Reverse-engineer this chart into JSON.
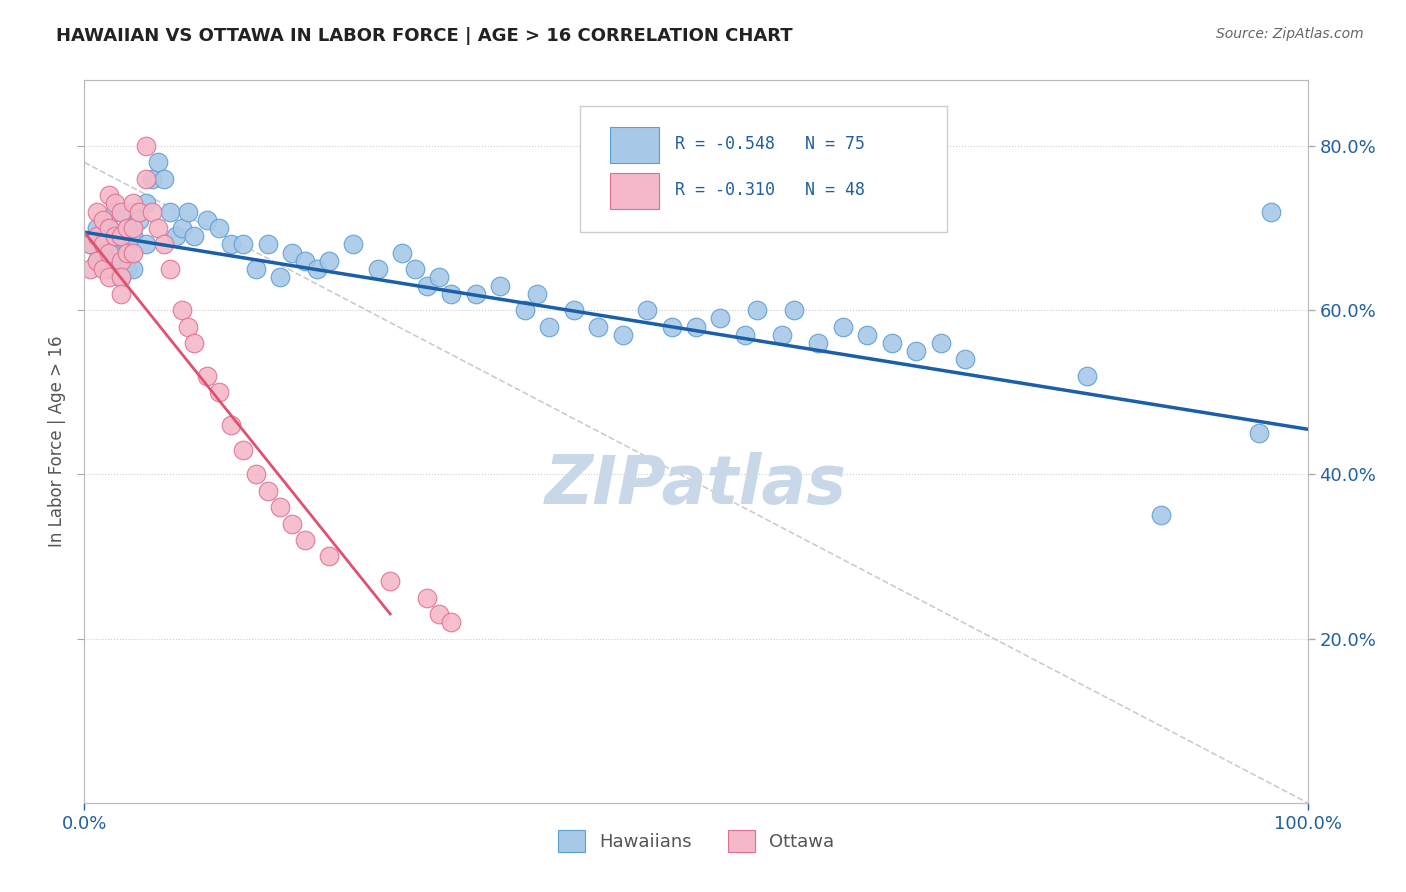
{
  "title": "HAWAIIAN VS OTTAWA IN LABOR FORCE | AGE > 16 CORRELATION CHART",
  "source": "Source: ZipAtlas.com",
  "ylabel": "In Labor Force | Age > 16",
  "hawaii_color": "#a8c8e8",
  "hawaii_edge_color": "#5a9fd4",
  "ottawa_color": "#f4b8c8",
  "ottawa_edge_color": "#e07090",
  "hawaii_line_color": "#1a5fa8",
  "ottawa_line_color": "#e05070",
  "dash_line_color": "#cccccc",
  "watermark": "ZIPatlas",
  "watermark_color": "#c8d8e8",
  "xlim": [
    0.0,
    1.0
  ],
  "ylim": [
    0.0,
    0.88
  ],
  "ytick_labels": [
    "20.0%",
    "40.0%",
    "60.0%",
    "80.0%"
  ],
  "ytick_values": [
    0.2,
    0.4,
    0.6,
    0.8
  ],
  "xtick_labels": [
    "0.0%",
    "100.0%"
  ],
  "xtick_values": [
    0.0,
    1.0
  ],
  "legend_R_hawaii": "R = -0.548",
  "legend_N_hawaii": "N = 75",
  "legend_R_ottawa": "R = -0.310",
  "legend_N_ottawa": "N = 48",
  "hawaii_x": [
    0.005,
    0.01,
    0.01,
    0.015,
    0.015,
    0.02,
    0.02,
    0.02,
    0.025,
    0.025,
    0.03,
    0.03,
    0.03,
    0.035,
    0.035,
    0.035,
    0.04,
    0.04,
    0.04,
    0.045,
    0.05,
    0.05,
    0.055,
    0.06,
    0.065,
    0.07,
    0.075,
    0.08,
    0.085,
    0.09,
    0.1,
    0.11,
    0.12,
    0.13,
    0.14,
    0.15,
    0.16,
    0.17,
    0.18,
    0.19,
    0.2,
    0.22,
    0.24,
    0.26,
    0.27,
    0.28,
    0.29,
    0.3,
    0.32,
    0.34,
    0.36,
    0.37,
    0.38,
    0.4,
    0.42,
    0.44,
    0.46,
    0.48,
    0.5,
    0.52,
    0.54,
    0.55,
    0.57,
    0.58,
    0.6,
    0.62,
    0.64,
    0.66,
    0.68,
    0.7,
    0.72,
    0.82,
    0.88,
    0.96,
    0.97
  ],
  "hawaii_y": [
    0.68,
    0.7,
    0.66,
    0.69,
    0.67,
    0.7,
    0.68,
    0.65,
    0.72,
    0.66,
    0.69,
    0.67,
    0.64,
    0.7,
    0.68,
    0.65,
    0.72,
    0.69,
    0.65,
    0.71,
    0.73,
    0.68,
    0.76,
    0.78,
    0.76,
    0.72,
    0.69,
    0.7,
    0.72,
    0.69,
    0.71,
    0.7,
    0.68,
    0.68,
    0.65,
    0.68,
    0.64,
    0.67,
    0.66,
    0.65,
    0.66,
    0.68,
    0.65,
    0.67,
    0.65,
    0.63,
    0.64,
    0.62,
    0.62,
    0.63,
    0.6,
    0.62,
    0.58,
    0.6,
    0.58,
    0.57,
    0.6,
    0.58,
    0.58,
    0.59,
    0.57,
    0.6,
    0.57,
    0.6,
    0.56,
    0.58,
    0.57,
    0.56,
    0.55,
    0.56,
    0.54,
    0.52,
    0.35,
    0.45,
    0.72
  ],
  "ottawa_x": [
    0.005,
    0.005,
    0.01,
    0.01,
    0.01,
    0.015,
    0.015,
    0.015,
    0.02,
    0.02,
    0.02,
    0.02,
    0.025,
    0.025,
    0.03,
    0.03,
    0.03,
    0.03,
    0.03,
    0.035,
    0.035,
    0.04,
    0.04,
    0.04,
    0.045,
    0.05,
    0.05,
    0.055,
    0.06,
    0.065,
    0.07,
    0.08,
    0.085,
    0.09,
    0.1,
    0.11,
    0.12,
    0.13,
    0.14,
    0.15,
    0.16,
    0.17,
    0.18,
    0.2,
    0.25,
    0.28,
    0.29,
    0.3
  ],
  "ottawa_y": [
    0.68,
    0.65,
    0.72,
    0.69,
    0.66,
    0.71,
    0.68,
    0.65,
    0.74,
    0.7,
    0.67,
    0.64,
    0.73,
    0.69,
    0.72,
    0.69,
    0.66,
    0.64,
    0.62,
    0.7,
    0.67,
    0.73,
    0.7,
    0.67,
    0.72,
    0.76,
    0.8,
    0.72,
    0.7,
    0.68,
    0.65,
    0.6,
    0.58,
    0.56,
    0.52,
    0.5,
    0.46,
    0.43,
    0.4,
    0.38,
    0.36,
    0.34,
    0.32,
    0.3,
    0.27,
    0.25,
    0.23,
    0.22
  ],
  "hawaii_line_x": [
    0.0,
    1.0
  ],
  "hawaii_line_y": [
    0.695,
    0.455
  ],
  "ottawa_line_x": [
    0.0,
    0.25
  ],
  "ottawa_line_y": [
    0.695,
    0.23
  ],
  "dash_line_x": [
    0.0,
    1.0
  ],
  "dash_line_y": [
    0.78,
    0.0
  ]
}
